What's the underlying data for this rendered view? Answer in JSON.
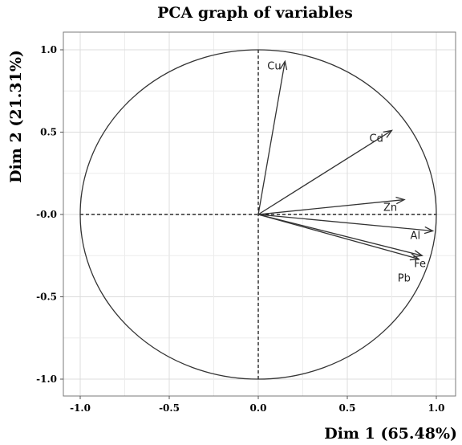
{
  "chart_data": {
    "type": "scatter",
    "title": "PCA graph of variables",
    "xlabel": "Dim 1 (65.48%)",
    "ylabel": "Dim 2 (21.31%)",
    "xlim": [
      -1.0,
      1.0
    ],
    "ylim": [
      -1.0,
      1.0
    ],
    "x_ticks": [
      "-1.0",
      "-0.5",
      "0.0",
      "0.5",
      "1.0"
    ],
    "y_ticks": [
      "1.0",
      "0.5",
      "-0.0",
      "-0.5",
      "-1.0"
    ],
    "grid": true,
    "correlation_circle": true,
    "variables": [
      {
        "name": "Cu",
        "x": 0.15,
        "y": 0.93
      },
      {
        "name": "Cd",
        "x": 0.75,
        "y": 0.51
      },
      {
        "name": "Zn",
        "x": 0.82,
        "y": 0.09
      },
      {
        "name": "Al",
        "x": 0.98,
        "y": -0.1
      },
      {
        "name": "Fe",
        "x": 0.92,
        "y": -0.25
      },
      {
        "name": "Pb",
        "x": 0.9,
        "y": -0.27
      }
    ]
  }
}
